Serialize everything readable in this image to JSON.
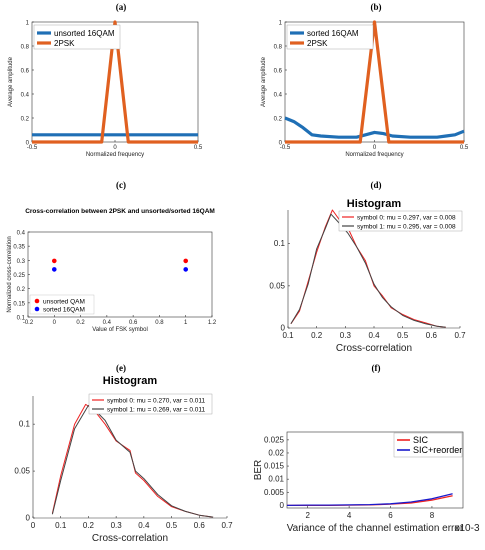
{
  "chart_data": [
    {
      "panel": "(a)",
      "type": "line",
      "title": "",
      "xlabel": "Normalized frequency",
      "ylabel": "Average amplitude",
      "xlim": [
        -0.5,
        0.5
      ],
      "ylim": [
        0,
        1
      ],
      "xticks": [
        "-0.5",
        "0",
        "0.5"
      ],
      "yticks": [
        "0",
        "0.2",
        "0.4",
        "0.6",
        "0.8",
        "1"
      ],
      "legend_position": "top-left",
      "series": [
        {
          "name": "unsorted 16QAM",
          "color": "#1f6fb5",
          "x": [
            -0.5,
            -0.4,
            -0.3,
            -0.2,
            -0.1,
            0,
            0.1,
            0.2,
            0.3,
            0.4,
            0.5
          ],
          "y": [
            0.06,
            0.06,
            0.06,
            0.06,
            0.06,
            0.06,
            0.06,
            0.06,
            0.06,
            0.06,
            0.06
          ]
        },
        {
          "name": "2PSK",
          "color": "#e06020",
          "x": [
            -0.5,
            -0.08,
            0,
            0.08,
            0.5
          ],
          "y": [
            0,
            0,
            1,
            0,
            0
          ]
        }
      ]
    },
    {
      "panel": "(b)",
      "type": "line",
      "title": "",
      "xlabel": "Normalized frequency",
      "ylabel": "Average amplitude",
      "xlim": [
        -0.5,
        0.5
      ],
      "ylim": [
        0,
        1
      ],
      "xticks": [
        "-0.5",
        "0",
        "0.5"
      ],
      "yticks": [
        "0",
        "0.2",
        "0.4",
        "0.6",
        "0.8",
        "1"
      ],
      "legend_position": "top-left",
      "series": [
        {
          "name": "sorted 16QAM",
          "color": "#1f6fb5",
          "x": [
            -0.5,
            -0.45,
            -0.4,
            -0.35,
            -0.3,
            -0.2,
            -0.1,
            -0.05,
            0,
            0.05,
            0.1,
            0.2,
            0.3,
            0.35,
            0.4,
            0.45,
            0.5
          ],
          "y": [
            0.2,
            0.17,
            0.12,
            0.06,
            0.05,
            0.04,
            0.04,
            0.06,
            0.08,
            0.07,
            0.05,
            0.04,
            0.04,
            0.04,
            0.05,
            0.06,
            0.09
          ]
        },
        {
          "name": "2PSK",
          "color": "#e06020",
          "x": [
            -0.5,
            -0.08,
            0,
            0.08,
            0.5
          ],
          "y": [
            0,
            0,
            1,
            0,
            0
          ]
        }
      ]
    },
    {
      "panel": "(c)",
      "type": "scatter",
      "title": "Cross-correlation between 2PSK and unsorted/sorted 16QAM",
      "xlabel": "Value of FSK symbol",
      "ylabel": "Normalized cross-correlation",
      "xlim": [
        -0.2,
        1.2
      ],
      "ylim": [
        0.1,
        0.4
      ],
      "xticks": [
        "-0.2",
        "0",
        "0.2",
        "0.4",
        "0.6",
        "0.8",
        "1",
        "1.2"
      ],
      "yticks": [
        "0.1",
        "0.15",
        "0.2",
        "0.25",
        "0.3",
        "0.35",
        "0.4"
      ],
      "legend_position": "bottom-left",
      "series": [
        {
          "name": "unsorted QAM",
          "color": "#ff0000",
          "x": [
            0,
            1
          ],
          "y": [
            0.298,
            0.298
          ]
        },
        {
          "name": "sorted 16QAM",
          "color": "#0000ff",
          "x": [
            0,
            1
          ],
          "y": [
            0.268,
            0.268
          ]
        }
      ]
    },
    {
      "panel": "(d)",
      "type": "line",
      "title": "Histogram",
      "xlabel": "Cross-correlation",
      "ylabel": "",
      "xlim": [
        0.1,
        0.7
      ],
      "ylim": [
        0,
        0.14
      ],
      "xticks": [
        "0.1",
        "0.2",
        "0.3",
        "0.4",
        "0.5",
        "0.6",
        "0.7"
      ],
      "yticks": [
        "0",
        "0.05",
        "0.1"
      ],
      "legend_position": "top-right",
      "series": [
        {
          "name": "symbol 0: mu = 0.297, var = 0.008",
          "color": "#ee2222",
          "x": [
            0.11,
            0.14,
            0.17,
            0.2,
            0.23,
            0.255,
            0.28,
            0.31,
            0.34,
            0.37,
            0.4,
            0.43,
            0.46,
            0.5,
            0.54,
            0.58,
            0.62,
            0.65
          ],
          "y": [
            0.005,
            0.02,
            0.055,
            0.09,
            0.12,
            0.14,
            0.128,
            0.118,
            0.096,
            0.08,
            0.05,
            0.038,
            0.024,
            0.016,
            0.01,
            0.006,
            0.002,
            0.001
          ]
        },
        {
          "name": "symbol 1: mu = 0.295, var = 0.008",
          "color": "#444444",
          "x": [
            0.11,
            0.14,
            0.17,
            0.2,
            0.23,
            0.25,
            0.28,
            0.31,
            0.34,
            0.37,
            0.4,
            0.43,
            0.46,
            0.5,
            0.54,
            0.58,
            0.62,
            0.65
          ],
          "y": [
            0.005,
            0.022,
            0.052,
            0.094,
            0.118,
            0.135,
            0.124,
            0.112,
            0.096,
            0.077,
            0.052,
            0.036,
            0.025,
            0.015,
            0.009,
            0.005,
            0.002,
            0.001
          ]
        }
      ]
    },
    {
      "panel": "(e)",
      "type": "line",
      "title": "Histogram",
      "xlabel": "Cross-correlation",
      "ylabel": "",
      "xlim": [
        0,
        0.7
      ],
      "ylim": [
        0,
        0.13
      ],
      "xticks": [
        "0",
        "0.1",
        "0.2",
        "0.3",
        "0.4",
        "0.5",
        "0.6",
        "0.7"
      ],
      "yticks": [
        "0",
        "0.05",
        "0.1"
      ],
      "legend_position": "top-right",
      "series": [
        {
          "name": "symbol 0: mu = 0.270, var = 0.011",
          "color": "#ee2222",
          "x": [
            0.07,
            0.1,
            0.15,
            0.19,
            0.22,
            0.26,
            0.3,
            0.35,
            0.37,
            0.4,
            0.45,
            0.5,
            0.55,
            0.6,
            0.65
          ],
          "y": [
            0.005,
            0.045,
            0.1,
            0.121,
            0.115,
            0.1,
            0.082,
            0.072,
            0.048,
            0.04,
            0.023,
            0.012,
            0.007,
            0.003,
            0.001
          ]
        },
        {
          "name": "symbol 1: mu = 0.269, var = 0.011",
          "color": "#444444",
          "x": [
            0.07,
            0.1,
            0.15,
            0.2,
            0.22,
            0.26,
            0.3,
            0.35,
            0.37,
            0.4,
            0.45,
            0.5,
            0.55,
            0.6,
            0.65
          ],
          "y": [
            0.004,
            0.04,
            0.095,
            0.12,
            0.116,
            0.104,
            0.083,
            0.07,
            0.05,
            0.042,
            0.025,
            0.013,
            0.007,
            0.003,
            0.001
          ]
        }
      ]
    },
    {
      "panel": "(f)",
      "type": "line",
      "title": "",
      "xlabel": "Variance of the channel estimation error",
      "xlabel_suffix": "x10-3",
      "ylabel": "BER",
      "xlim": [
        1,
        9.5
      ],
      "ylim": [
        -0.001,
        0.028
      ],
      "xticks": [
        "2",
        "4",
        "6",
        "8"
      ],
      "yticks": [
        "0",
        "0.005",
        "0.01",
        "0.015",
        "0.02",
        "0.025"
      ],
      "legend_position": "top-right",
      "series": [
        {
          "name": "SIC",
          "color": "#ee2222",
          "x": [
            1,
            2,
            3,
            4,
            5,
            6,
            7,
            8,
            9
          ],
          "y": [
            0,
            0,
            0,
            0.0001,
            0.0002,
            0.0005,
            0.0009,
            0.002,
            0.0037
          ]
        },
        {
          "name": "SIC+reorder",
          "color": "#1a1acc",
          "x": [
            1,
            2,
            3,
            4,
            5,
            6,
            7,
            8,
            9
          ],
          "y": [
            0,
            0.0001,
            0.0001,
            0.0002,
            0.0003,
            0.0006,
            0.0013,
            0.0025,
            0.0044
          ]
        }
      ]
    }
  ]
}
